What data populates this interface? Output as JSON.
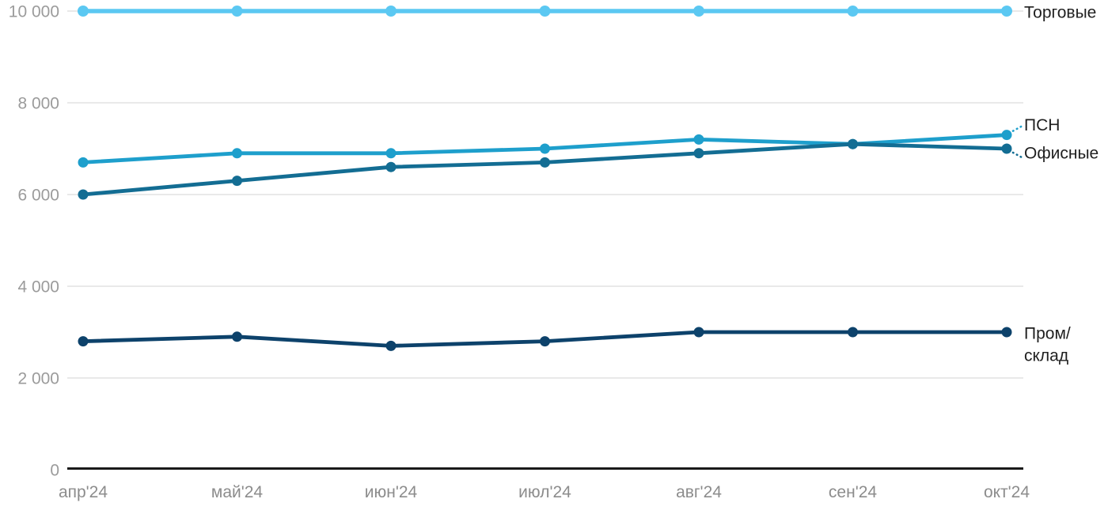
{
  "chart_data": {
    "type": "line",
    "title": "",
    "xlabel": "",
    "ylabel": "",
    "categories": [
      "апр'24",
      "май'24",
      "июн'24",
      "июл'24",
      "авг'24",
      "сен'24",
      "окт'24"
    ],
    "series": [
      {
        "name": "Торговые",
        "label_lines": [
          "Торговые"
        ],
        "color": "#5BC8F2",
        "values": [
          10000,
          10000,
          10000,
          10000,
          10000,
          10000,
          10000
        ],
        "connector": "none"
      },
      {
        "name": "ПСН",
        "label_lines": [
          "ПСН"
        ],
        "color": "#1E9FCC",
        "values": [
          6700,
          6900,
          6900,
          7000,
          7200,
          7100,
          7300
        ],
        "connector": "up"
      },
      {
        "name": "Офисные",
        "label_lines": [
          "Офисные"
        ],
        "color": "#136D93",
        "values": [
          6000,
          6300,
          6600,
          6700,
          6900,
          7100,
          7000
        ],
        "connector": "down"
      },
      {
        "name": "Пром/склад",
        "label_lines": [
          "Пром/",
          "склад"
        ],
        "color": "#0D426B",
        "values": [
          2800,
          2900,
          2700,
          2800,
          3000,
          3000,
          3000
        ],
        "connector": "none"
      }
    ],
    "ylim": [
      0,
      10000
    ],
    "y_ticks": [
      {
        "value": 0,
        "label": "0"
      },
      {
        "value": 2000,
        "label": "2 000"
      },
      {
        "value": 4000,
        "label": "4 000"
      },
      {
        "value": 6000,
        "label": "6 000"
      },
      {
        "value": 8000,
        "label": "8 000"
      },
      {
        "value": 10000,
        "label": "10 000"
      }
    ],
    "grid": true,
    "legend_position": "right-end-labels"
  },
  "colors": {
    "background": "#FFFFFF",
    "grid": "#E2E2E2",
    "axis": "#1A1A1A",
    "y_tick_text": "#9B9B9B",
    "x_tick_text": "#8C8C8C",
    "series_label_text": "#1F1F1F"
  }
}
